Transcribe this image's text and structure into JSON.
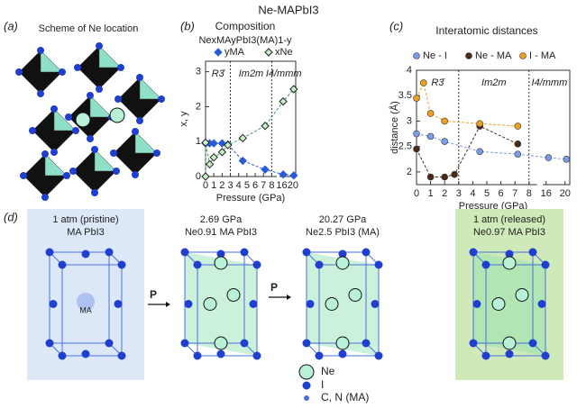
{
  "title": "Ne-MAPbI3",
  "panel_labels": [
    "(a)",
    "(b)",
    "(c)",
    "(d)"
  ],
  "panel_a": {
    "title": "Scheme of Ne location"
  },
  "chart_data": [
    {
      "type": "line",
      "title": "Composition",
      "subtitle": "NexMAyPbI3(MA)1-y",
      "xlabel": "Pressure (GPa)",
      "ylabel": "x, y",
      "xlim": [
        0,
        21
      ],
      "xbreak": [
        8.5,
        15.5
      ],
      "xticks": [
        0,
        1,
        2,
        3,
        4,
        5,
        6,
        7,
        8,
        16,
        20
      ],
      "ylim": [
        0,
        3.3
      ],
      "yticks": [
        0,
        1,
        2,
        3
      ],
      "phases": [
        "R3̄",
        "Im2m",
        "I4/mmm"
      ],
      "phase_boundaries": [
        3,
        8
      ],
      "marker": "diamond",
      "series": [
        {
          "name": "yMA",
          "color": "#2a5bd7",
          "filled": true,
          "x": [
            0,
            0.5,
            1,
            2,
            2.7,
            4.5,
            7.2,
            16.5,
            20.3
          ],
          "values": [
            0.95,
            0.95,
            0.95,
            0.95,
            0.92,
            0.45,
            0.2,
            0.06,
            0.03
          ]
        },
        {
          "name": "xNe",
          "color": "#3aa05a",
          "filled": false,
          "x": [
            0,
            0,
            0.5,
            1,
            2,
            2.7,
            4.5,
            7.2,
            16.5,
            20.3
          ],
          "values": [
            0,
            0.97,
            0.35,
            0.55,
            0.7,
            0.9,
            1.1,
            1.45,
            2.15,
            2.5
          ]
        }
      ]
    },
    {
      "type": "line",
      "title": "Interatomic distances",
      "xlabel": "Pressure (GPa)",
      "ylabel": "distance (Å)",
      "xlim": [
        0,
        21
      ],
      "xbreak": [
        8.5,
        15.5
      ],
      "xticks": [
        0,
        1,
        2,
        3,
        4,
        5,
        6,
        7,
        8,
        16,
        20
      ],
      "ylim": [
        1.75,
        4
      ],
      "yticks": [
        2,
        2.5,
        3,
        3.5,
        4
      ],
      "phases": [
        "R3̄",
        "Im2m",
        "I4/mmm"
      ],
      "phase_boundaries": [
        3,
        8
      ],
      "marker": "circle",
      "series": [
        {
          "name": "Ne - I",
          "color": "#7a9de8",
          "x": [
            0,
            1,
            2,
            4.5,
            7.2,
            16.5,
            20.3
          ],
          "values": [
            2.75,
            2.7,
            2.6,
            2.4,
            2.35,
            2.28,
            2.25
          ]
        },
        {
          "name": "Ne - MA",
          "color": "#4a2a18",
          "x": [
            0,
            1,
            2,
            2.7,
            4.5,
            7.2
          ],
          "values": [
            2.45,
            1.9,
            1.9,
            1.95,
            2.9,
            2.55
          ]
        },
        {
          "name": "I - MA",
          "color": "#f0a020",
          "x": [
            0,
            0.5,
            1,
            2,
            4.5,
            7.2
          ],
          "values": [
            3.45,
            3.75,
            3.15,
            3.0,
            2.95,
            2.9
          ]
        }
      ]
    }
  ],
  "panel_d": {
    "states": [
      {
        "condition": "1 atm (pristine)",
        "formula": "MA PbI3"
      },
      {
        "condition": "2.69 GPa",
        "formula": "Ne0.91 MA PbI3"
      },
      {
        "condition": "20.27 GPa",
        "formula": "Ne2.5 PbI3 (MA)"
      },
      {
        "condition": "1 atm (released)",
        "formula": "Ne0.97 MA PbI3"
      }
    ],
    "arrows": [
      "P",
      "P"
    ],
    "inner_label": "MA",
    "legend": [
      "Ne",
      "I",
      "C, N (MA)"
    ]
  }
}
